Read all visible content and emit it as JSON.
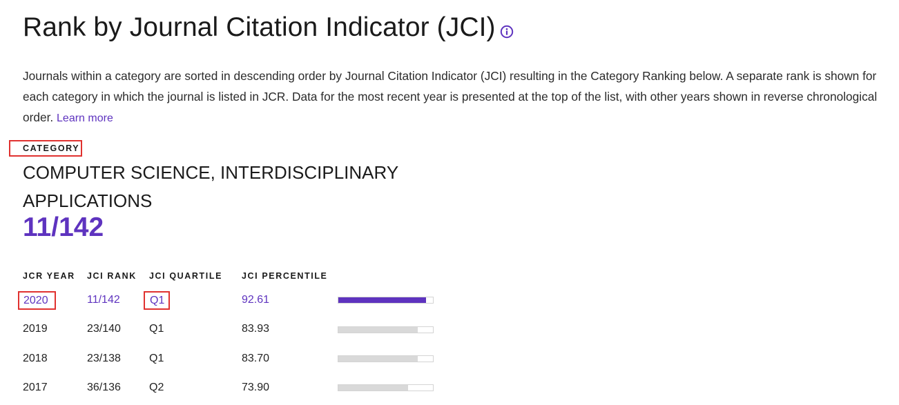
{
  "page": {
    "title": "Rank by Journal Citation Indicator (JCI)",
    "info_icon": "info-circle-icon",
    "description": "Journals within a category are sorted in descending order by Journal Citation Indicator (JCI) resulting in the Category Ranking below. A separate rank is shown for each category in which the journal is listed in JCR. Data for the most recent year is presented at the top of the list, with other years shown in reverse chronological order.",
    "learn_more": "Learn more"
  },
  "category": {
    "label": "CATEGORY",
    "name": "COMPUTER SCIENCE, INTERDISCIPLINARY APPLICATIONS",
    "rank": "11/142"
  },
  "table": {
    "headers": {
      "year": "JCR YEAR",
      "rank": "JCI RANK",
      "quartile": "JCI QUARTILE",
      "percentile": "JCI PERCENTILE"
    },
    "rows": [
      {
        "year": "2020",
        "rank": "11/142",
        "quartile": "Q1",
        "percentile": "92.61",
        "percentile_value": 92.61
      },
      {
        "year": "2019",
        "rank": "23/140",
        "quartile": "Q1",
        "percentile": "83.93",
        "percentile_value": 83.93
      },
      {
        "year": "2018",
        "rank": "23/138",
        "quartile": "Q1",
        "percentile": "83.70",
        "percentile_value": 83.7
      },
      {
        "year": "2017",
        "rank": "36/136",
        "quartile": "Q2",
        "percentile": "73.90",
        "percentile_value": 73.9
      }
    ]
  },
  "colors": {
    "accent": "#5e33bf",
    "highlight_box": "#e0312f",
    "bar_inactive": "#d9d9d9"
  }
}
